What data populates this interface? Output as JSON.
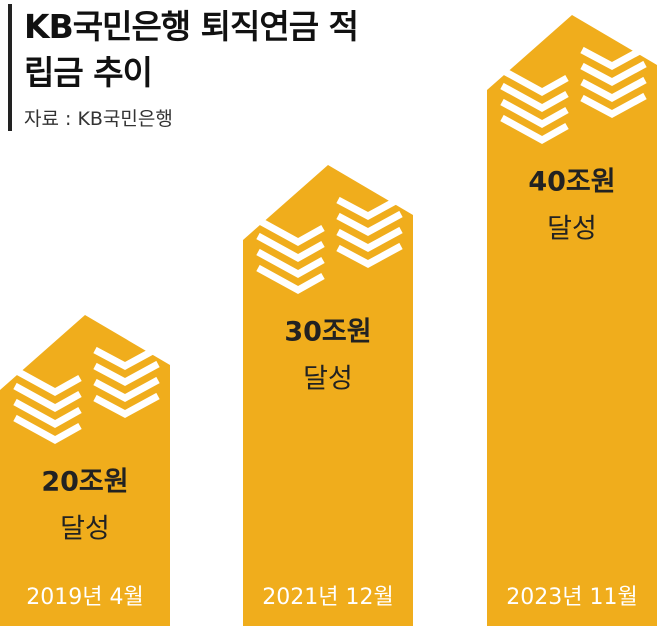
{
  "chart_data": {
    "type": "bar",
    "title": "KB국민은행 퇴직연금 적립금 추이",
    "source": "자료 : KB국민은행",
    "categories": [
      "2019년 4월",
      "2021년 12월",
      "2023년 11월"
    ],
    "values": [
      20,
      30,
      40
    ],
    "value_labels": [
      "20조원",
      "30조원",
      "40조원"
    ],
    "annotation": "달성",
    "color": "#f0ad1c"
  }
}
